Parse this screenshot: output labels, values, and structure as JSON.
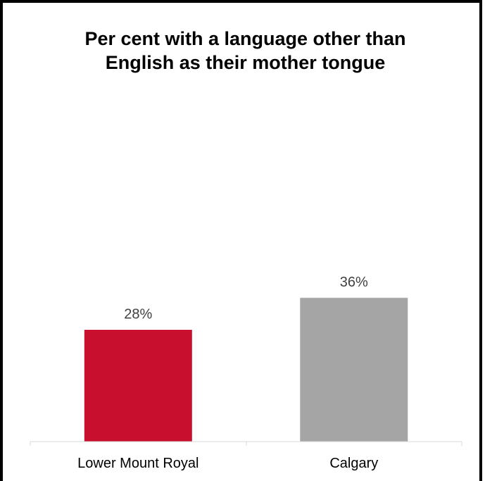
{
  "chart_data": {
    "type": "bar",
    "title": "Per cent with a language other than English as their mother tongue",
    "categories": [
      "Lower Mount Royal",
      "Calgary"
    ],
    "values": [
      28,
      36
    ],
    "value_labels": [
      "28%",
      "36%"
    ],
    "colors": [
      "#c8102e",
      "#a5a5a5"
    ],
    "xlabel": "",
    "ylabel": "",
    "ylim": [
      0,
      60
    ],
    "grid": false,
    "legend": "none"
  }
}
